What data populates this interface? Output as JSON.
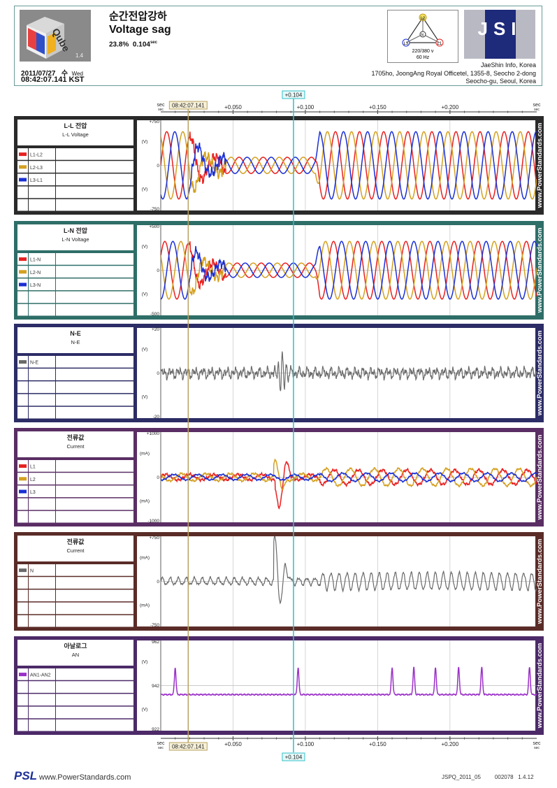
{
  "header": {
    "event_kr": "순간전압강하",
    "event_en": "Voltage sag",
    "magnitude": "23.8%",
    "duration": "0.104",
    "duration_unit": "sec",
    "logo_text": "Qube",
    "logo_version": "1.4",
    "date": "2011/07/27",
    "weekday_kr": "수",
    "weekday_en": "Wed",
    "time": "08:42:07.141 KST",
    "connection": "220/380 v",
    "frequency": "60 Hz",
    "company_logo": "JSI",
    "address": [
      "JaeShin Info, Korea",
      "1705ho, JoongAng Royal Officetel, 1355-8, Seocho 2-dong",
      "Seocho-gu, Seoul, Korea"
    ]
  },
  "time_axis": {
    "start_label": "sec",
    "ticks": [
      "+0.050",
      "+0.100",
      "+0.150",
      "+0.200"
    ],
    "start_marker": "08:42:07.141",
    "end_marker": "+0.104"
  },
  "watermark": "www.PowerStandards.com",
  "footer": {
    "brand": "PSL",
    "url": "www.PowerStandards.com",
    "ref": "JSPQ_2011_05",
    "page": "002078",
    "version": "1.4.12"
  },
  "colors": {
    "l1": "#e82020",
    "l2": "#d4a020",
    "l3": "#1a2fd4",
    "neutral": "#6a6a6a",
    "analog": "#9b30c8",
    "marker_start": "#b8a060",
    "marker_end": "#30c0c8"
  },
  "chart_data": [
    {
      "type": "line",
      "title": "L-L 전압",
      "subtitle": "L-L Voltage",
      "ylabel": "(V)",
      "ytick_labels": [
        "+750",
        "0",
        "-750"
      ],
      "ylim": [
        -750,
        750
      ],
      "xlim": [
        0,
        0.26
      ],
      "legend": [
        "L1-L2",
        "L2-L3",
        "L3-L1"
      ],
      "series": [
        {
          "name": "L1-L2",
          "color": "#e82020",
          "pre_amplitude": 560,
          "sag_amplitude": 135,
          "post_amplitude": 560
        },
        {
          "name": "L2-L3",
          "color": "#d4a020",
          "pre_amplitude": 560,
          "sag_amplitude": 135,
          "post_amplitude": 560
        },
        {
          "name": "L3-L1",
          "color": "#1a2fd4",
          "pre_amplitude": 560,
          "sag_amplitude": 135,
          "post_amplitude": 560
        }
      ],
      "sag_start": 0.02,
      "sag_end": 0.11
    },
    {
      "type": "line",
      "title": "L-N 전압",
      "subtitle": "L-N Voltage",
      "ylabel": "(V)",
      "ytick_labels": [
        "+500",
        "0",
        "-500"
      ],
      "ylim": [
        -500,
        500
      ],
      "legend": [
        "L1-N",
        "L2-N",
        "L3-N"
      ],
      "series": [
        {
          "name": "L1-N",
          "color": "#e82020",
          "pre_amplitude": 320,
          "sag_amplitude": 80
        },
        {
          "name": "L2-N",
          "color": "#d4a020",
          "pre_amplitude": 320,
          "sag_amplitude": 80
        },
        {
          "name": "L3-N",
          "color": "#1a2fd4",
          "pre_amplitude": 320,
          "sag_amplitude": 80
        }
      ]
    },
    {
      "type": "line",
      "title": "N-E",
      "subtitle": "N-E",
      "ylabel": "(V)",
      "ytick_labels": [
        "+20",
        "0",
        "-20"
      ],
      "ylim": [
        -20,
        20
      ],
      "legend": [
        "N-E"
      ],
      "series": [
        {
          "name": "N-E",
          "color": "#6a6a6a",
          "noise_amplitude": 3,
          "transient_peak": 9
        }
      ]
    },
    {
      "type": "line",
      "title": "전류값",
      "subtitle": "Current",
      "ylabel": "(mA)",
      "ytick_labels": [
        "+1000",
        "0",
        "-1000"
      ],
      "ylim": [
        -1000,
        1000
      ],
      "legend": [
        "L1",
        "L2",
        "L3"
      ],
      "series": [
        {
          "name": "L1",
          "color": "#e82020",
          "amplitude": 180,
          "transient_peak": -700
        },
        {
          "name": "L2",
          "color": "#d4a020",
          "amplitude": 180,
          "transient_peak": 400
        },
        {
          "name": "L3",
          "color": "#1a2fd4",
          "amplitude": 100
        }
      ]
    },
    {
      "type": "line",
      "title": "전류값",
      "subtitle": "Current",
      "ylabel": "(mA)",
      "ytick_labels": [
        "+750",
        "0",
        "-750"
      ],
      "ylim": [
        -750,
        750
      ],
      "legend": [
        "N"
      ],
      "series": [
        {
          "name": "N",
          "color": "#6a6a6a",
          "amplitude": 130,
          "transient_peak": 700
        }
      ]
    },
    {
      "type": "line",
      "title": "아날로그",
      "subtitle": "AN",
      "ylabel": "(V)",
      "ytick_labels": [
        "962",
        "942",
        "922"
      ],
      "ylim": [
        922,
        962
      ],
      "legend": [
        "AN1-AN2"
      ],
      "series": [
        {
          "name": "AN1-AN2",
          "color": "#9b30c8",
          "baseline": 938,
          "spikes_at": [
            0.01,
            0.095,
            0.16,
            0.175,
            0.19,
            0.206,
            0.222,
            0.255
          ]
        }
      ]
    }
  ]
}
